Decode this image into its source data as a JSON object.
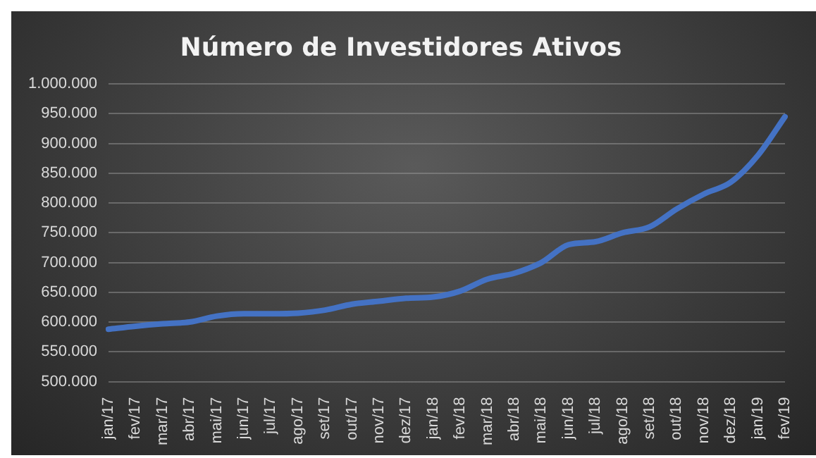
{
  "chart_data": {
    "type": "line",
    "title": "Número de Investidores Ativos",
    "categories": [
      "jan/17",
      "fev/17",
      "mar/17",
      "abr/17",
      "mai/17",
      "jun/17",
      "jul/17",
      "ago/17",
      "set/17",
      "out/17",
      "nov/17",
      "dez/17",
      "jan/18",
      "fev/18",
      "mar/18",
      "abr/18",
      "mai/18",
      "jun/18",
      "jul/18",
      "ago/18",
      "set/18",
      "out/18",
      "nov/18",
      "dez/18",
      "jan/19",
      "fev/19"
    ],
    "series": [
      {
        "color": "#4472c4",
        "values": [
          588000,
          593000,
          597000,
          600000,
          610000,
          614000,
          614000,
          615000,
          620000,
          630000,
          635000,
          640000,
          642000,
          652000,
          672000,
          682000,
          700000,
          730000,
          735000,
          750000,
          760000,
          790000,
          815000,
          835000,
          880000,
          945000
        ]
      }
    ],
    "ylim": [
      500000,
      1000000
    ],
    "yticks": [
      {
        "value": 500000,
        "label": "500.000"
      },
      {
        "value": 550000,
        "label": "550.000"
      },
      {
        "value": 600000,
        "label": "600.000"
      },
      {
        "value": 650000,
        "label": "650.000"
      },
      {
        "value": 700000,
        "label": "700.000"
      },
      {
        "value": 750000,
        "label": "750.000"
      },
      {
        "value": 800000,
        "label": "800.000"
      },
      {
        "value": 850000,
        "label": "850.000"
      },
      {
        "value": 900000,
        "label": "900.000"
      },
      {
        "value": 950000,
        "label": "950.000"
      },
      {
        "value": 1000000,
        "label": "1.000.000"
      }
    ],
    "grid": "y",
    "legend": false,
    "marker": "none",
    "line_style": "solid"
  }
}
